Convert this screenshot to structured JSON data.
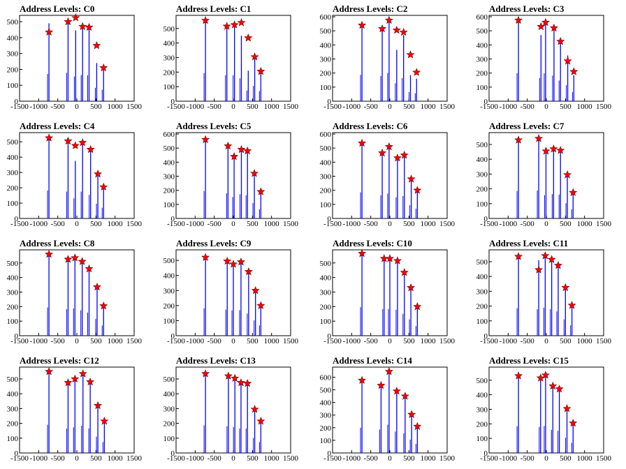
{
  "chart_data": [
    {
      "type": "bar",
      "title": "Address Levels: C0",
      "xlim": [
        -1500,
        1500
      ],
      "ylim": [
        0,
        540
      ],
      "yticks": [
        0,
        100,
        200,
        300,
        400,
        500
      ],
      "xticks": [
        -1500,
        -1000,
        -500,
        0,
        500,
        1000,
        1500
      ],
      "peaks": [
        {
          "x": -730,
          "y": 435,
          "bar": 490
        },
        {
          "x": -230,
          "y": 500,
          "bar": 510
        },
        {
          "x": -30,
          "y": 525,
          "bar": 445
        },
        {
          "x": 150,
          "y": 470,
          "bar": 470
        },
        {
          "x": 320,
          "y": 465,
          "bar": 465
        },
        {
          "x": 520,
          "y": 350,
          "bar": 240
        },
        {
          "x": 700,
          "y": 210,
          "bar": 205
        }
      ]
    },
    {
      "type": "bar",
      "title": "Address Levels: C1",
      "xlim": [
        -1500,
        1500
      ],
      "ylim": [
        0,
        590
      ],
      "yticks": [
        0,
        100,
        200,
        300,
        400,
        500
      ],
      "xticks": [
        -1500,
        -1000,
        -500,
        0,
        500,
        1000,
        1500
      ],
      "peaks": [
        {
          "x": -730,
          "y": 555,
          "bar": 550
        },
        {
          "x": -170,
          "y": 515,
          "bar": 510
        },
        {
          "x": 30,
          "y": 525,
          "bar": 510
        },
        {
          "x": 210,
          "y": 540,
          "bar": 450
        },
        {
          "x": 390,
          "y": 435,
          "bar": 210
        },
        {
          "x": 560,
          "y": 305,
          "bar": 300
        },
        {
          "x": 720,
          "y": 205,
          "bar": 200
        }
      ]
    },
    {
      "type": "bar",
      "title": "Address Levels: C2",
      "xlim": [
        -1500,
        1500
      ],
      "ylim": [
        0,
        610
      ],
      "yticks": [
        0,
        100,
        200,
        300,
        400,
        500,
        600
      ],
      "xticks": [
        -1500,
        -1000,
        -500,
        0,
        500,
        1000,
        1500
      ],
      "peaks": [
        {
          "x": -730,
          "y": 540,
          "bar": 535
        },
        {
          "x": -200,
          "y": 515,
          "bar": 510
        },
        {
          "x": -20,
          "y": 575,
          "bar": 575
        },
        {
          "x": 180,
          "y": 505,
          "bar": 365
        },
        {
          "x": 360,
          "y": 490,
          "bar": 470
        },
        {
          "x": 540,
          "y": 330,
          "bar": 185
        },
        {
          "x": 700,
          "y": 205,
          "bar": 160
        }
      ]
    },
    {
      "type": "bar",
      "title": "Address Levels: C3",
      "xlim": [
        -1500,
        1500
      ],
      "ylim": [
        0,
        610
      ],
      "yticks": [
        0,
        100,
        200,
        300,
        400,
        500,
        600
      ],
      "xticks": [
        -1500,
        -1000,
        -500,
        0,
        500,
        1000,
        1500
      ],
      "peaks": [
        {
          "x": -730,
          "y": 575,
          "bar": 570
        },
        {
          "x": -140,
          "y": 530,
          "bar": 470
        },
        {
          "x": -20,
          "y": 560,
          "bar": 565
        },
        {
          "x": 200,
          "y": 520,
          "bar": 520
        },
        {
          "x": 370,
          "y": 425,
          "bar": 420
        },
        {
          "x": 560,
          "y": 285,
          "bar": 325
        },
        {
          "x": 720,
          "y": 210,
          "bar": 185
        }
      ]
    },
    {
      "type": "bar",
      "title": "Address Levels: C4",
      "xlim": [
        -1500,
        1500
      ],
      "ylim": [
        0,
        560
      ],
      "yticks": [
        0,
        100,
        200,
        300,
        400,
        500
      ],
      "xticks": [
        -1500,
        -1000,
        -500,
        0,
        500,
        1000,
        1500
      ],
      "peaks": [
        {
          "x": -730,
          "y": 525,
          "bar": 520
        },
        {
          "x": -230,
          "y": 505,
          "bar": 500
        },
        {
          "x": -40,
          "y": 475,
          "bar": 375
        },
        {
          "x": 150,
          "y": 495,
          "bar": 500
        },
        {
          "x": 360,
          "y": 450,
          "bar": 440
        },
        {
          "x": 550,
          "y": 290,
          "bar": 275
        },
        {
          "x": 700,
          "y": 205,
          "bar": 200
        }
      ]
    },
    {
      "type": "bar",
      "title": "Address Levels: C5",
      "xlim": [
        -1500,
        1500
      ],
      "ylim": [
        0,
        610
      ],
      "yticks": [
        0,
        100,
        200,
        300,
        400,
        500,
        600
      ],
      "xticks": [
        -1500,
        -1000,
        -500,
        0,
        500,
        1000,
        1500
      ],
      "peaks": [
        {
          "x": -730,
          "y": 560,
          "bar": 555
        },
        {
          "x": -140,
          "y": 515,
          "bar": 510
        },
        {
          "x": 20,
          "y": 440,
          "bar": 435
        },
        {
          "x": 210,
          "y": 490,
          "bar": 490
        },
        {
          "x": 370,
          "y": 480,
          "bar": 470
        },
        {
          "x": 550,
          "y": 320,
          "bar": 315
        },
        {
          "x": 720,
          "y": 190,
          "bar": 185
        }
      ]
    },
    {
      "type": "bar",
      "title": "Address Levels: C6",
      "xlim": [
        -1500,
        1500
      ],
      "ylim": [
        0,
        610
      ],
      "yticks": [
        0,
        100,
        200,
        300,
        400,
        500,
        600
      ],
      "xticks": [
        -1500,
        -1000,
        -500,
        0,
        500,
        1000,
        1500
      ],
      "peaks": [
        {
          "x": -730,
          "y": 535,
          "bar": 530
        },
        {
          "x": -200,
          "y": 465,
          "bar": 470
        },
        {
          "x": -20,
          "y": 510,
          "bar": 505
        },
        {
          "x": 200,
          "y": 430,
          "bar": 430
        },
        {
          "x": 380,
          "y": 450,
          "bar": 455
        },
        {
          "x": 560,
          "y": 280,
          "bar": 270
        },
        {
          "x": 720,
          "y": 200,
          "bar": 200
        }
      ]
    },
    {
      "type": "bar",
      "title": "Address Levels: C7",
      "xlim": [
        -1500,
        1500
      ],
      "ylim": [
        0,
        580
      ],
      "yticks": [
        0,
        100,
        200,
        300,
        400,
        500
      ],
      "xticks": [
        -1500,
        -1000,
        -500,
        0,
        500,
        1000,
        1500
      ],
      "peaks": [
        {
          "x": -730,
          "y": 530,
          "bar": 530
        },
        {
          "x": -200,
          "y": 540,
          "bar": 540
        },
        {
          "x": -10,
          "y": 455,
          "bar": 450
        },
        {
          "x": 190,
          "y": 470,
          "bar": 470
        },
        {
          "x": 370,
          "y": 460,
          "bar": 460
        },
        {
          "x": 550,
          "y": 295,
          "bar": 295
        },
        {
          "x": 700,
          "y": 175,
          "bar": 175
        }
      ]
    },
    {
      "type": "bar",
      "title": "Address Levels: C8",
      "xlim": [
        -1500,
        1500
      ],
      "ylim": [
        0,
        590
      ],
      "yticks": [
        0,
        100,
        200,
        300,
        400,
        500
      ],
      "xticks": [
        -1500,
        -1000,
        -500,
        0,
        500,
        1000,
        1500
      ],
      "peaks": [
        {
          "x": -730,
          "y": 560,
          "bar": 555
        },
        {
          "x": -230,
          "y": 525,
          "bar": 520
        },
        {
          "x": -50,
          "y": 535,
          "bar": 535
        },
        {
          "x": 140,
          "y": 510,
          "bar": 500
        },
        {
          "x": 320,
          "y": 460,
          "bar": 455
        },
        {
          "x": 530,
          "y": 335,
          "bar": 330
        },
        {
          "x": 700,
          "y": 205,
          "bar": 200
        }
      ]
    },
    {
      "type": "bar",
      "title": "Address Levels: C9",
      "xlim": [
        -1500,
        1500
      ],
      "ylim": [
        0,
        570
      ],
      "yticks": [
        0,
        100,
        200,
        300,
        400,
        500
      ],
      "xticks": [
        -1500,
        -1000,
        -500,
        0,
        500,
        1000,
        1500
      ],
      "peaks": [
        {
          "x": -730,
          "y": 520,
          "bar": 520
        },
        {
          "x": -160,
          "y": 495,
          "bar": 495
        },
        {
          "x": 0,
          "y": 475,
          "bar": 480
        },
        {
          "x": 200,
          "y": 490,
          "bar": 485
        },
        {
          "x": 400,
          "y": 425,
          "bar": 420
        },
        {
          "x": 580,
          "y": 300,
          "bar": 290
        },
        {
          "x": 720,
          "y": 200,
          "bar": 195
        }
      ]
    },
    {
      "type": "bar",
      "title": "Address Levels: C10",
      "xlim": [
        -1500,
        1500
      ],
      "ylim": [
        0,
        590
      ],
      "yticks": [
        0,
        100,
        200,
        300,
        400,
        500
      ],
      "xticks": [
        -1500,
        -1000,
        -500,
        0,
        500,
        1000,
        1500
      ],
      "peaks": [
        {
          "x": -730,
          "y": 565,
          "bar": 560
        },
        {
          "x": -150,
          "y": 530,
          "bar": 525
        },
        {
          "x": 0,
          "y": 530,
          "bar": 525
        },
        {
          "x": 200,
          "y": 515,
          "bar": 510
        },
        {
          "x": 380,
          "y": 435,
          "bar": 430
        },
        {
          "x": 550,
          "y": 330,
          "bar": 320
        },
        {
          "x": 720,
          "y": 200,
          "bar": 190
        }
      ]
    },
    {
      "type": "bar",
      "title": "Address Levels: C11",
      "xlim": [
        -1500,
        1500
      ],
      "ylim": [
        0,
        580
      ],
      "yticks": [
        0,
        100,
        200,
        300,
        400,
        500
      ],
      "xticks": [
        -1500,
        -1000,
        -500,
        0,
        500,
        1000,
        1500
      ],
      "peaks": [
        {
          "x": -730,
          "y": 535,
          "bar": 530
        },
        {
          "x": -200,
          "y": 445,
          "bar": 510
        },
        {
          "x": -30,
          "y": 540,
          "bar": 540
        },
        {
          "x": 140,
          "y": 515,
          "bar": 510
        },
        {
          "x": 310,
          "y": 475,
          "bar": 470
        },
        {
          "x": 500,
          "y": 325,
          "bar": 315
        },
        {
          "x": 670,
          "y": 205,
          "bar": 200
        }
      ]
    },
    {
      "type": "bar",
      "title": "Address Levels: C12",
      "xlim": [
        -1500,
        1500
      ],
      "ylim": [
        0,
        580
      ],
      "yticks": [
        0,
        100,
        200,
        300,
        400,
        500
      ],
      "xticks": [
        -1500,
        -1000,
        -500,
        0,
        500,
        1000,
        1500
      ],
      "peaks": [
        {
          "x": -730,
          "y": 550,
          "bar": 545
        },
        {
          "x": -230,
          "y": 475,
          "bar": 470
        },
        {
          "x": -50,
          "y": 500,
          "bar": 495
        },
        {
          "x": 160,
          "y": 535,
          "bar": 525
        },
        {
          "x": 350,
          "y": 480,
          "bar": 475
        },
        {
          "x": 550,
          "y": 320,
          "bar": 315
        },
        {
          "x": 720,
          "y": 215,
          "bar": 210
        }
      ]
    },
    {
      "type": "bar",
      "title": "Address Levels: C13",
      "xlim": [
        -1500,
        1500
      ],
      "ylim": [
        0,
        580
      ],
      "yticks": [
        0,
        100,
        200,
        300,
        400,
        500
      ],
      "xticks": [
        -1500,
        -1000,
        -500,
        0,
        500,
        1000,
        1500
      ],
      "peaks": [
        {
          "x": -730,
          "y": 535,
          "bar": 530
        },
        {
          "x": -130,
          "y": 520,
          "bar": 515
        },
        {
          "x": 40,
          "y": 505,
          "bar": 500
        },
        {
          "x": 200,
          "y": 475,
          "bar": 470
        },
        {
          "x": 370,
          "y": 470,
          "bar": 470
        },
        {
          "x": 560,
          "y": 295,
          "bar": 290
        },
        {
          "x": 720,
          "y": 215,
          "bar": 210
        }
      ]
    },
    {
      "type": "bar",
      "title": "Address Levels: C14",
      "xlim": [
        -1500,
        1500
      ],
      "ylim": [
        0,
        680
      ],
      "yticks": [
        0,
        100,
        200,
        300,
        400,
        500,
        600
      ],
      "xticks": [
        -1500,
        -1000,
        -500,
        0,
        500,
        1000,
        1500
      ],
      "peaks": [
        {
          "x": -730,
          "y": 575,
          "bar": 570
        },
        {
          "x": -230,
          "y": 535,
          "bar": 530
        },
        {
          "x": -20,
          "y": 645,
          "bar": 640
        },
        {
          "x": 180,
          "y": 490,
          "bar": 485
        },
        {
          "x": 400,
          "y": 450,
          "bar": 445
        },
        {
          "x": 570,
          "y": 305,
          "bar": 300
        },
        {
          "x": 720,
          "y": 210,
          "bar": 205
        }
      ]
    },
    {
      "type": "bar",
      "title": "Address Levels: C15",
      "xlim": [
        -1500,
        1500
      ],
      "ylim": [
        0,
        590
      ],
      "yticks": [
        0,
        100,
        200,
        300,
        400,
        500
      ],
      "xticks": [
        -1500,
        -1000,
        -500,
        0,
        500,
        1000,
        1500
      ],
      "peaks": [
        {
          "x": -730,
          "y": 530,
          "bar": 525
        },
        {
          "x": -150,
          "y": 515,
          "bar": 510
        },
        {
          "x": -20,
          "y": 535,
          "bar": 530
        },
        {
          "x": 170,
          "y": 460,
          "bar": 455
        },
        {
          "x": 340,
          "y": 440,
          "bar": 435
        },
        {
          "x": 540,
          "y": 305,
          "bar": 300
        },
        {
          "x": 700,
          "y": 205,
          "bar": 200
        }
      ]
    }
  ],
  "colors": {
    "bars": "#0000ff",
    "markers": "#ff0000",
    "marker_outline": "#660000",
    "axes": "#000000"
  }
}
